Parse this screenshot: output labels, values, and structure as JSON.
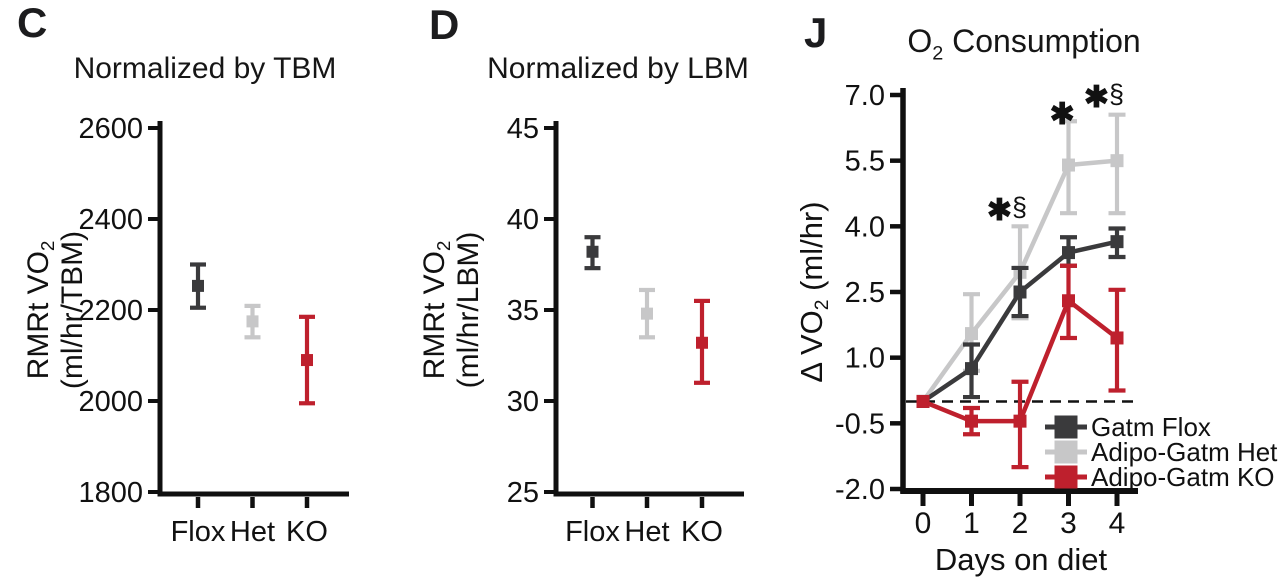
{
  "panels": {
    "c": {
      "letter": "C",
      "title": "Normalized by TBM"
    },
    "d": {
      "letter": "D",
      "title": "Normalized by LBM"
    },
    "j": {
      "letter": "J",
      "title": "O_{2} Consumption"
    }
  },
  "colors": {
    "flox": "#3a3a3c",
    "het": "#c7c7c8",
    "ko": "#be202d",
    "axis": "#101010",
    "text": "#111111"
  },
  "chart_data": [
    {
      "panel": "C",
      "type": "scatter",
      "title": "Normalized by TBM",
      "ylabel_lines": [
        "RMRt VO_{2}",
        "(ml/hr/TBM)"
      ],
      "categories": [
        "Flox",
        "Het",
        "KO"
      ],
      "values": [
        2253,
        2175,
        2090
      ],
      "err_low": [
        2205,
        2140,
        1995
      ],
      "err_high": [
        2300,
        2209,
        2185
      ],
      "point_colors": [
        "flox",
        "het",
        "ko"
      ],
      "ylim": [
        1800,
        2600
      ],
      "yticks": [
        2600,
        2400,
        2200,
        2000,
        1800
      ],
      "ytick_labels": [
        "2600",
        "2400",
        "2200",
        "2000",
        "1800"
      ],
      "grid": false
    },
    {
      "panel": "D",
      "type": "scatter",
      "title": "Normalized by LBM",
      "ylabel_lines": [
        "RMRt VO_{2}",
        "(ml/hr/LBM)"
      ],
      "categories": [
        "Flox",
        "Het",
        "KO"
      ],
      "values": [
        38.2,
        34.8,
        33.2
      ],
      "err_low": [
        37.3,
        33.5,
        31.0
      ],
      "err_high": [
        39.0,
        36.1,
        35.5
      ],
      "point_colors": [
        "flox",
        "het",
        "ko"
      ],
      "ylim": [
        25,
        45
      ],
      "yticks": [
        45,
        40,
        35,
        30,
        25
      ],
      "ytick_labels": [
        "45",
        "40",
        "35",
        "30",
        "25"
      ],
      "grid": false
    },
    {
      "panel": "J",
      "type": "line",
      "title": "O_{2} Consumption",
      "xlabel": "Days on diet",
      "ylabel": "Δ VO_{2} (ml/hr)",
      "x": [
        0,
        1,
        2,
        3,
        4
      ],
      "xtick_labels": [
        "0",
        "1",
        "2",
        "3",
        "4"
      ],
      "ylim": [
        -2.0,
        7.0
      ],
      "yticks": [
        7.0,
        5.5,
        4.0,
        2.5,
        1.0,
        -0.5,
        -2.0
      ],
      "ytick_labels": [
        "7.0",
        "5.5",
        "4.0",
        "2.5",
        "1.0",
        "-0.5",
        "-2.0"
      ],
      "zero_dashed_line": true,
      "grid": false,
      "series": [
        {
          "name": "Gatm Flox",
          "color": "flox",
          "values": [
            0,
            0.75,
            2.5,
            3.4,
            3.65
          ],
          "err_low": [
            0,
            0.1,
            1.95,
            3.1,
            3.3
          ],
          "err_high": [
            0,
            1.3,
            3.05,
            3.75,
            3.95
          ]
        },
        {
          "name": "Adipo-Gatm Het",
          "color": "het",
          "values": [
            0,
            1.55,
            2.95,
            5.4,
            5.5
          ],
          "err_low": [
            0,
            0.7,
            1.9,
            4.3,
            4.3
          ],
          "err_high": [
            0,
            2.45,
            4.0,
            6.4,
            6.55
          ]
        },
        {
          "name": "Adipo-Gatm KO",
          "color": "ko",
          "values": [
            0,
            -0.45,
            -0.45,
            2.3,
            1.45
          ],
          "err_low": [
            0,
            -0.75,
            -1.5,
            1.45,
            0.25
          ],
          "err_high": [
            0,
            -0.15,
            0.45,
            3.1,
            2.55
          ]
        }
      ],
      "legend": {
        "position": "inside-bottom-right",
        "labels": [
          "Gatm Flox",
          "Adipo-Gatm Het",
          "Adipo-Gatm KO"
        ]
      },
      "annotations": [
        {
          "text": "✱§",
          "x": 1.73,
          "y": 4.42
        },
        {
          "text": "✱",
          "x": 2.87,
          "y": 6.61
        },
        {
          "text": "✱§",
          "x": 3.73,
          "y": 7.0
        }
      ]
    }
  ]
}
